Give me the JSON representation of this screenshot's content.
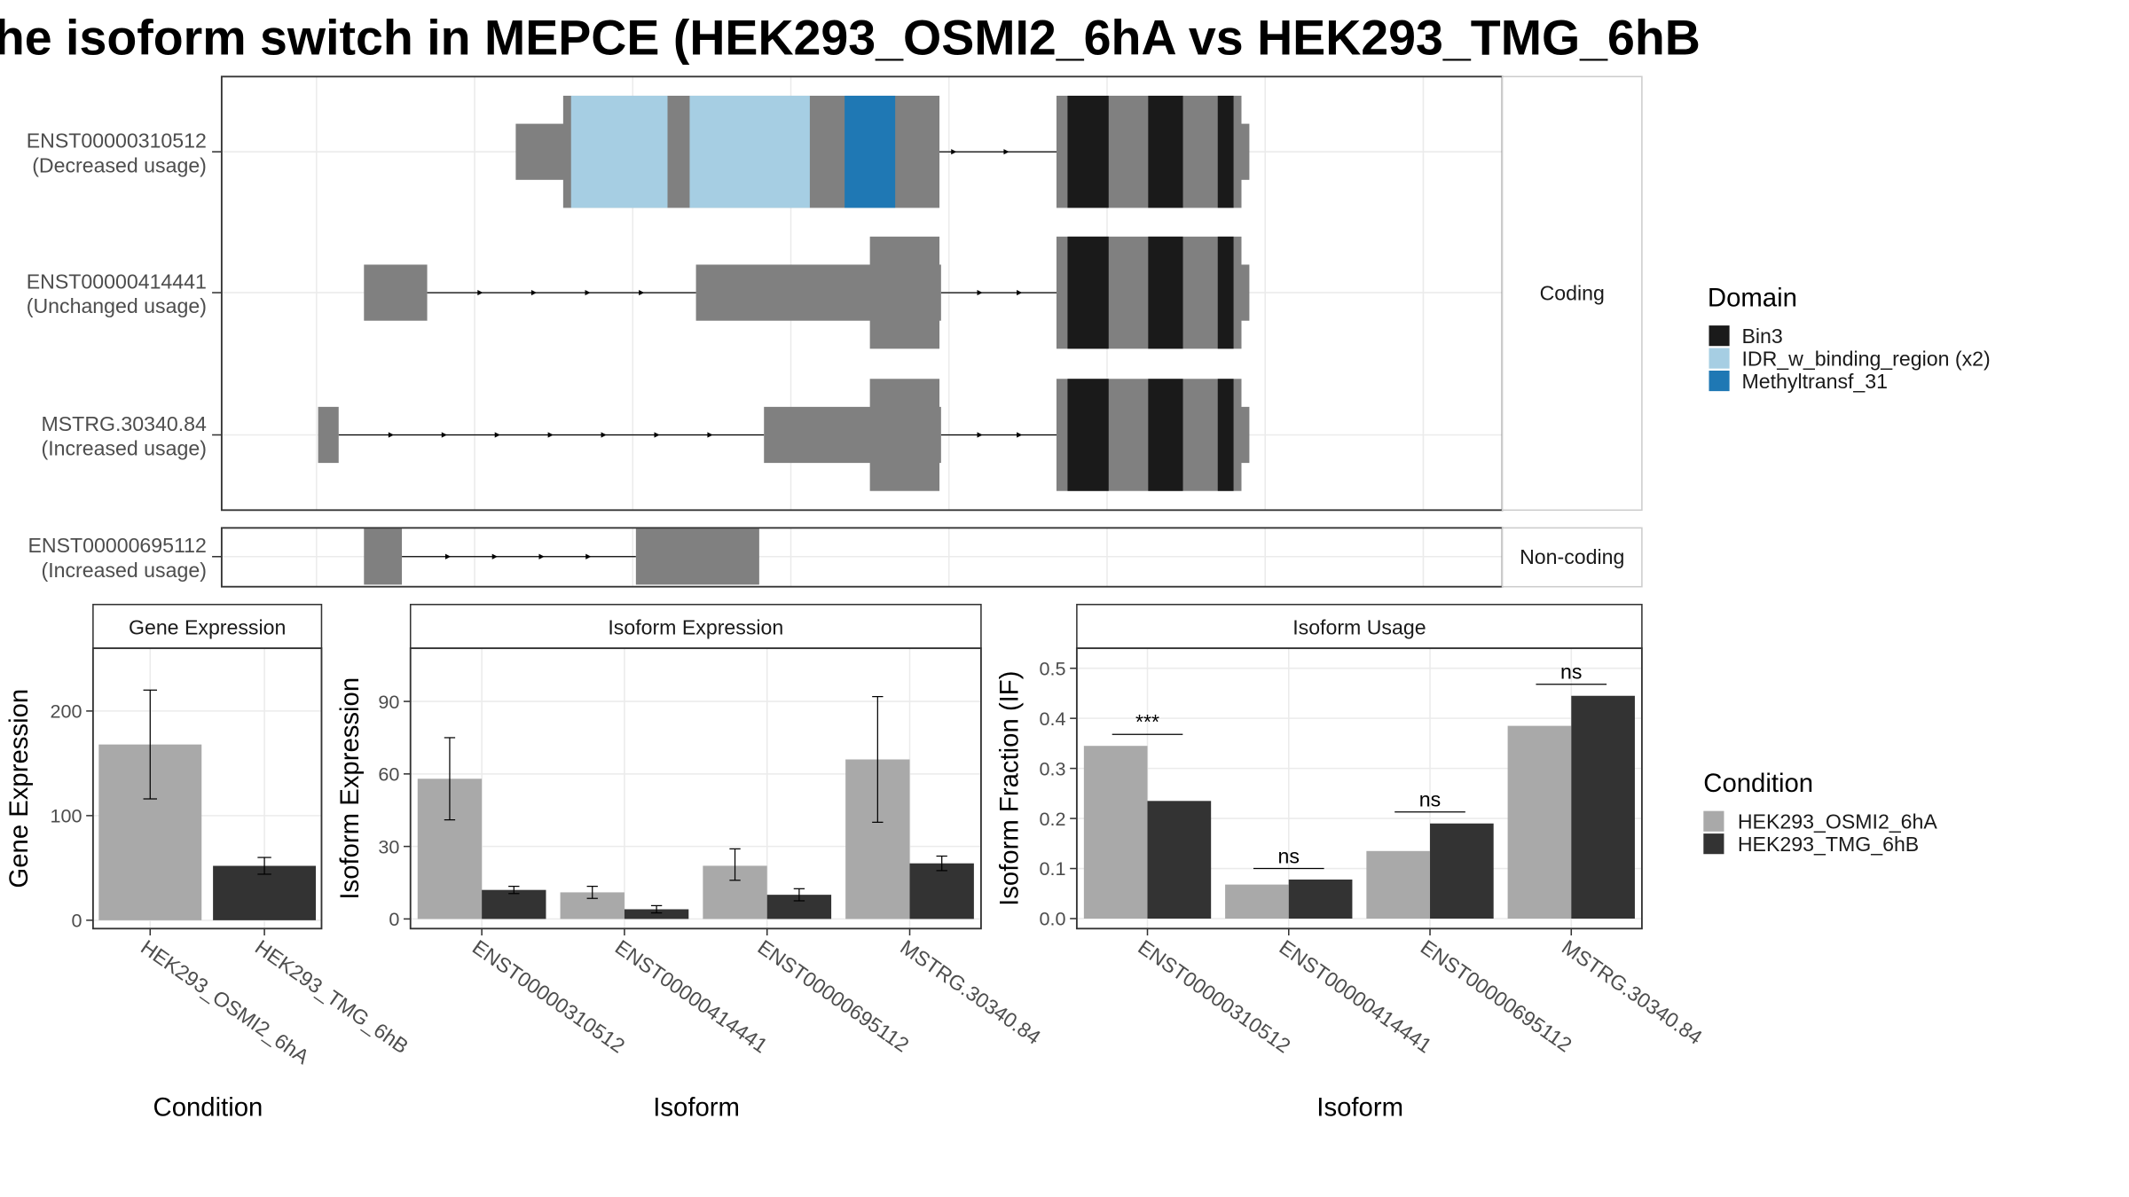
{
  "title": "he isoform switch in MEPCE (HEK293_OSMI2_6hA vs HEK293_TMG_6hB",
  "colors": {
    "bin3": "#1a1a1a",
    "idr": "#a6cee3",
    "methyltransf": "#1f78b4",
    "cds_gray": "#808080",
    "cond_a": "#a9a9a9",
    "cond_b": "#333333",
    "panel_border": "#333333",
    "grid": "#ebebeb",
    "strip_fill": "#ffffff",
    "text": "#1a1a1a",
    "axis_text": "#4d4d4d"
  },
  "structure": {
    "coordinate_range": [
      -6,
      75
    ],
    "grid_x": [
      0,
      10,
      20,
      30,
      40,
      50,
      60,
      70
    ],
    "facets": [
      {
        "strip": "Coding",
        "transcripts": [
          {
            "label_id": "ENST00000310512",
            "label_usage": "(Decreased usage)",
            "exons": [
              [
                12.6,
                17.1
              ],
              [
                47.0,
                59.0
              ]
            ],
            "cds": [
              [
                15.6,
                39.4
              ],
              [
                46.8,
                58.5
              ]
            ],
            "domains": [
              {
                "domain": "IDR_w_binding_region (x2)",
                "start": 16.1,
                "end": 22.2
              },
              {
                "domain": "IDR_w_binding_region (x2)",
                "start": 23.6,
                "end": 31.2
              },
              {
                "domain": "Methyltransf_31",
                "start": 33.4,
                "end": 36.6
              },
              {
                "domain": "Bin3",
                "start": 47.5,
                "end": 50.1
              },
              {
                "domain": "Bin3",
                "start": 52.6,
                "end": 54.8
              },
              {
                "domain": "Bin3",
                "start": 57.0,
                "end": 58.0
              }
            ]
          },
          {
            "label_id": "ENST00000414441",
            "label_usage": "(Unchanged usage)",
            "exons": [
              [
                3.0,
                7.0
              ],
              [
                24.0,
                39.5
              ],
              [
                47.0,
                59.0
              ]
            ],
            "cds": [
              [
                35.0,
                39.4
              ],
              [
                46.8,
                58.5
              ]
            ],
            "domains": [
              {
                "domain": "Bin3",
                "start": 47.5,
                "end": 50.1
              },
              {
                "domain": "Bin3",
                "start": 52.6,
                "end": 54.8
              },
              {
                "domain": "Bin3",
                "start": 57.0,
                "end": 58.0
              }
            ]
          },
          {
            "label_id": "MSTRG.30340.84",
            "label_usage": "(Increased usage)",
            "exons": [
              [
                0.1,
                1.4
              ],
              [
                28.3,
                39.5
              ],
              [
                47.0,
                59.0
              ]
            ],
            "cds": [
              [
                35.0,
                39.4
              ],
              [
                46.8,
                58.5
              ]
            ],
            "domains": [
              {
                "domain": "Bin3",
                "start": 47.5,
                "end": 50.1
              },
              {
                "domain": "Bin3",
                "start": 52.6,
                "end": 54.8
              },
              {
                "domain": "Bin3",
                "start": 57.0,
                "end": 58.0
              }
            ]
          }
        ]
      },
      {
        "strip": "Non-coding",
        "transcripts": [
          {
            "label_id": "ENST00000695112",
            "label_usage": "(Increased usage)",
            "exons": [
              [
                3.0,
                5.4
              ],
              [
                20.2,
                28.0
              ]
            ],
            "cds": [],
            "domains": []
          }
        ]
      }
    ]
  },
  "legend_domain": {
    "title": "Domain",
    "items": [
      {
        "label": "Bin3",
        "color": "#1a1a1a"
      },
      {
        "label": "IDR_w_binding_region (x2)",
        "color": "#a6cee3"
      },
      {
        "label": "Methyltransf_31",
        "color": "#1f78b4"
      }
    ]
  },
  "legend_condition": {
    "title": "Condition",
    "items": [
      {
        "label": "HEK293_OSMI2_6hA",
        "color": "#a9a9a9"
      },
      {
        "label": "HEK293_TMG_6hB",
        "color": "#333333"
      }
    ]
  },
  "chart_data": [
    {
      "type": "bar",
      "title": "Gene Expression",
      "xlabel": "Condition",
      "ylabel": "Gene Expression",
      "ylim": [
        -8,
        260
      ],
      "yticks": [
        0,
        100,
        200
      ],
      "categories": [
        "HEK293_OSMI2_6hA",
        "HEK293_TMG_6hB"
      ],
      "values": [
        168,
        52
      ],
      "error": [
        [
          116,
          220
        ],
        [
          44,
          60
        ]
      ]
    },
    {
      "type": "bar",
      "title": "Isoform Expression",
      "xlabel": "Isoform",
      "ylabel": "Isoform Expression",
      "ylim": [
        -4,
        112
      ],
      "yticks": [
        0,
        30,
        60,
        90
      ],
      "categories": [
        "ENST00000310512",
        "ENST00000414441",
        "ENST00000695112",
        "MSTRG.30340.84"
      ],
      "series": [
        {
          "name": "HEK293_OSMI2_6hA",
          "values": [
            58,
            11,
            22,
            66
          ],
          "error": [
            [
              41,
              75
            ],
            [
              8.5,
              13.5
            ],
            [
              16,
              29
            ],
            [
              40,
              92
            ]
          ]
        },
        {
          "name": "HEK293_TMG_6hB",
          "values": [
            12,
            4,
            10,
            23
          ],
          "error": [
            [
              10.5,
              13.5
            ],
            [
              2.5,
              5.5
            ],
            [
              7.5,
              12.5
            ],
            [
              20,
              26
            ]
          ]
        }
      ]
    },
    {
      "type": "bar",
      "title": "Isoform Usage",
      "xlabel": "Isoform",
      "ylabel": "Isoform Fraction (IF)",
      "ylim": [
        -0.02,
        0.54
      ],
      "yticks": [
        0.0,
        0.1,
        0.2,
        0.3,
        0.4,
        0.5
      ],
      "ytick_labels": [
        "0.0",
        "0.1",
        "0.2",
        "0.3",
        "0.4",
        "0.5"
      ],
      "categories": [
        "ENST00000310512",
        "ENST00000414441",
        "ENST00000695112",
        "MSTRG.30340.84"
      ],
      "series": [
        {
          "name": "HEK293_OSMI2_6hA",
          "values": [
            0.345,
            0.068,
            0.135,
            0.385
          ]
        },
        {
          "name": "HEK293_TMG_6hB",
          "values": [
            0.235,
            0.078,
            0.19,
            0.445
          ]
        }
      ],
      "significance": [
        {
          "label": "***",
          "y": 0.368
        },
        {
          "label": "ns",
          "y": 0.1
        },
        {
          "label": "ns",
          "y": 0.213
        },
        {
          "label": "ns",
          "y": 0.468
        }
      ]
    }
  ]
}
